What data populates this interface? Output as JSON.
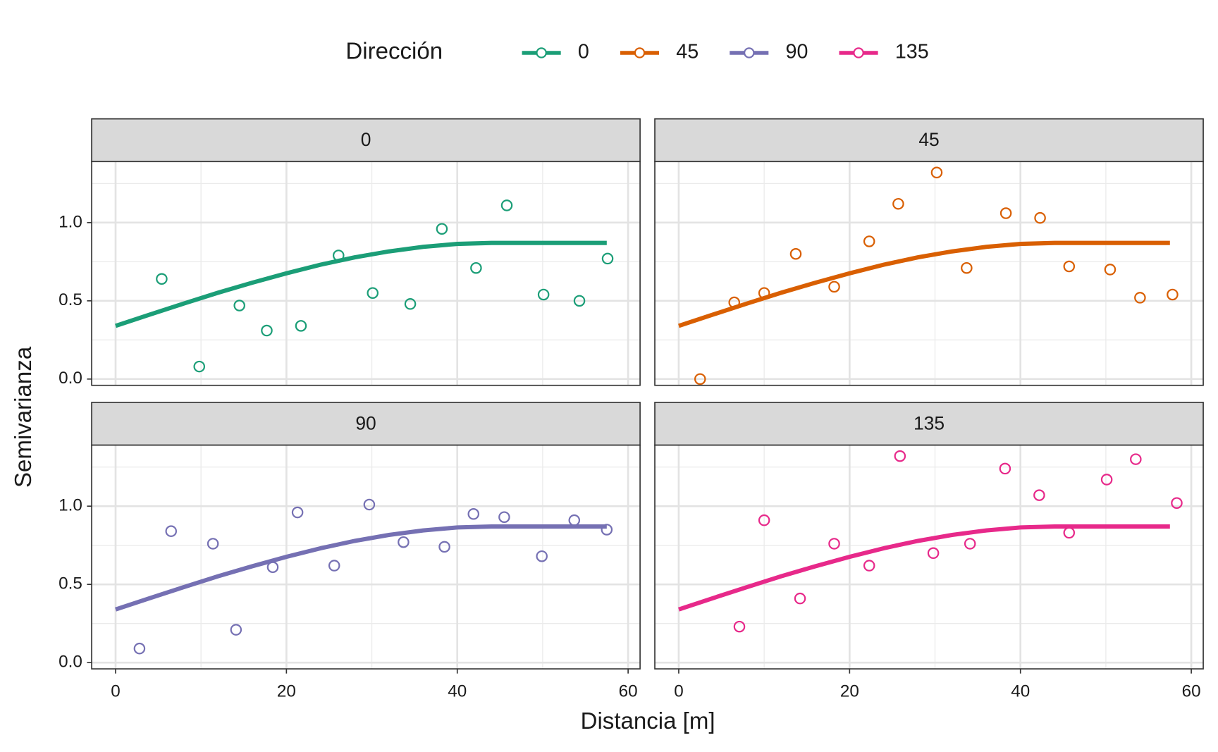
{
  "legend_title": "Dirección",
  "x_label": "Distancia [m]",
  "y_label": "Semivarianza",
  "chart_data": [
    {
      "type": "scatter",
      "title": "0",
      "xlim": [
        -2.8,
        61.4
      ],
      "ylim": [
        -0.04,
        1.39
      ],
      "xticks": [
        0,
        20,
        40,
        60
      ],
      "yticks": [
        {
          "value": 0,
          "label": "0.0"
        },
        {
          "value": 0.5,
          "label": "0.5"
        },
        {
          "value": 1,
          "label": "1.0"
        }
      ],
      "minor_xticks": [
        10,
        30,
        50
      ],
      "minor_yticks": [
        0.25,
        0.75,
        1.25
      ],
      "grid": true,
      "series": [
        {
          "name": "0",
          "color": "#1b9e77",
          "x": [
            5.4,
            9.8,
            14.5,
            17.7,
            21.7,
            26.1,
            30.1,
            34.5,
            38.2,
            42.2,
            45.8,
            50.1,
            54.3,
            57.6
          ],
          "values": [
            0.64,
            0.08,
            0.47,
            0.31,
            0.34,
            0.79,
            0.55,
            0.48,
            0.96,
            0.71,
            1.11,
            0.54,
            0.5,
            0.77
          ],
          "fit_x": [
            0,
            4,
            8,
            12,
            16,
            20,
            24,
            28,
            32,
            36,
            40,
            44,
            57.5
          ],
          "fit_values": [
            0.34,
            0.412,
            0.483,
            0.552,
            0.616,
            0.676,
            0.731,
            0.778,
            0.816,
            0.845,
            0.864,
            0.87,
            0.87
          ]
        }
      ]
    },
    {
      "type": "scatter",
      "title": "45",
      "xlim": [
        -2.8,
        61.4
      ],
      "ylim": [
        -0.04,
        1.39
      ],
      "xticks": [
        0,
        20,
        40,
        60
      ],
      "yticks": [
        {
          "value": 0,
          "label": "0.0"
        },
        {
          "value": 0.5,
          "label": "0.5"
        },
        {
          "value": 1,
          "label": "1.0"
        }
      ],
      "minor_xticks": [
        10,
        30,
        50
      ],
      "minor_yticks": [
        0.25,
        0.75,
        1.25
      ],
      "grid": true,
      "series": [
        {
          "name": "45",
          "color": "#d95f02",
          "x": [
            2.5,
            6.5,
            10.0,
            13.7,
            18.2,
            22.3,
            25.7,
            30.2,
            33.7,
            38.3,
            42.3,
            45.7,
            50.5,
            54.0,
            57.8
          ],
          "values": [
            0.0,
            0.49,
            0.55,
            0.8,
            0.59,
            0.88,
            1.12,
            1.32,
            0.71,
            1.06,
            1.03,
            0.72,
            0.7,
            0.52,
            0.54
          ],
          "fit_x": [
            0,
            4,
            8,
            12,
            16,
            20,
            24,
            28,
            32,
            36,
            40,
            44,
            57.5
          ],
          "fit_values": [
            0.34,
            0.412,
            0.483,
            0.552,
            0.616,
            0.676,
            0.731,
            0.778,
            0.816,
            0.845,
            0.864,
            0.87,
            0.87
          ]
        }
      ]
    },
    {
      "type": "scatter",
      "title": "90",
      "xlim": [
        -2.8,
        61.4
      ],
      "ylim": [
        -0.04,
        1.39
      ],
      "xticks": [
        0,
        20,
        40,
        60
      ],
      "yticks": [
        {
          "value": 0,
          "label": "0.0"
        },
        {
          "value": 0.5,
          "label": "0.5"
        },
        {
          "value": 1,
          "label": "1.0"
        }
      ],
      "minor_xticks": [
        10,
        30,
        50
      ],
      "minor_yticks": [
        0.25,
        0.75,
        1.25
      ],
      "grid": true,
      "series": [
        {
          "name": "90",
          "color": "#7570b3",
          "x": [
            2.8,
            6.5,
            11.4,
            14.1,
            18.4,
            21.3,
            25.6,
            29.7,
            33.7,
            38.5,
            41.9,
            45.5,
            49.9,
            53.7,
            57.5
          ],
          "values": [
            0.09,
            0.84,
            0.76,
            0.21,
            0.61,
            0.96,
            0.62,
            1.01,
            0.77,
            0.74,
            0.95,
            0.93,
            0.68,
            0.91,
            0.85
          ],
          "fit_x": [
            0,
            4,
            8,
            12,
            16,
            20,
            24,
            28,
            32,
            36,
            40,
            44,
            57.5
          ],
          "fit_values": [
            0.34,
            0.412,
            0.483,
            0.552,
            0.616,
            0.676,
            0.731,
            0.778,
            0.816,
            0.845,
            0.864,
            0.87,
            0.87
          ]
        }
      ]
    },
    {
      "type": "scatter",
      "title": "135",
      "xlim": [
        -2.8,
        61.4
      ],
      "ylim": [
        -0.04,
        1.39
      ],
      "xticks": [
        0,
        20,
        40,
        60
      ],
      "yticks": [
        {
          "value": 0,
          "label": "0.0"
        },
        {
          "value": 0.5,
          "label": "0.5"
        },
        {
          "value": 1,
          "label": "1.0"
        }
      ],
      "minor_xticks": [
        10,
        30,
        50
      ],
      "minor_yticks": [
        0.25,
        0.75,
        1.25
      ],
      "grid": true,
      "series": [
        {
          "name": "135",
          "color": "#e7298a",
          "x": [
            7.1,
            10.0,
            14.2,
            18.2,
            22.3,
            25.9,
            29.8,
            34.1,
            38.2,
            42.2,
            45.7,
            50.1,
            53.5,
            58.3
          ],
          "values": [
            0.23,
            0.91,
            0.41,
            0.76,
            0.62,
            1.32,
            0.7,
            0.76,
            1.24,
            1.07,
            0.83,
            1.17,
            1.3,
            1.02
          ],
          "fit_x": [
            0,
            4,
            8,
            12,
            16,
            20,
            24,
            28,
            32,
            36,
            40,
            44,
            57.5
          ],
          "fit_values": [
            0.34,
            0.412,
            0.483,
            0.552,
            0.616,
            0.676,
            0.731,
            0.778,
            0.816,
            0.845,
            0.864,
            0.87,
            0.87
          ]
        }
      ]
    }
  ]
}
